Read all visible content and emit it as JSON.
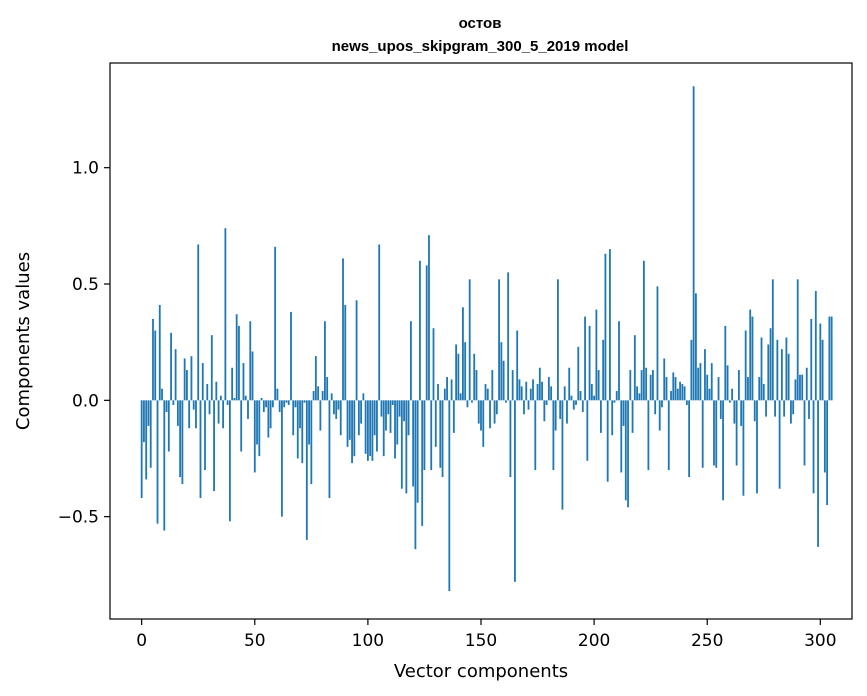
{
  "chart_data": {
    "type": "bar",
    "title_line1": "остов",
    "title_line2": "news_upos_skipgram_300_5_2019 model",
    "xlabel": "Vector components",
    "ylabel": "Components values",
    "xlim": [
      -14,
      314
    ],
    "ylim": [
      -0.94,
      1.45
    ],
    "xticks": [
      0,
      50,
      100,
      150,
      200,
      250,
      300
    ],
    "xtick_labels": [
      "0",
      "50",
      "100",
      "150",
      "200",
      "250",
      "300"
    ],
    "yticks": [
      -0.5,
      0.0,
      0.5,
      1.0
    ],
    "ytick_labels": [
      "−0.5",
      "0.0",
      "0.5",
      "1.0"
    ],
    "bar_color": "#1f77b4",
    "values": [
      -0.42,
      -0.18,
      -0.34,
      -0.11,
      -0.29,
      0.35,
      0.3,
      -0.53,
      0.41,
      0.05,
      -0.56,
      -0.05,
      -0.22,
      0.29,
      -0.02,
      0.22,
      -0.11,
      -0.33,
      -0.36,
      0.18,
      0.13,
      -0.12,
      0.19,
      -0.04,
      -0.12,
      0.67,
      -0.42,
      0.16,
      -0.3,
      0.07,
      -0.06,
      0.28,
      -0.39,
      0.08,
      -0.1,
      0.02,
      -0.12,
      0.74,
      -0.02,
      -0.52,
      0.14,
      0.01,
      0.37,
      0.32,
      -0.22,
      0.16,
      0.02,
      -0.08,
      0.34,
      0.21,
      -0.31,
      -0.19,
      -0.24,
      0.01,
      -0.05,
      -0.03,
      -0.16,
      -0.12,
      -0.03,
      0.66,
      0.05,
      -0.05,
      -0.5,
      -0.03,
      -0.01,
      -0.02,
      0.38,
      -0.15,
      -0.03,
      -0.25,
      -0.12,
      -0.27,
      -0.01,
      -0.6,
      -0.19,
      -0.36,
      0.04,
      0.19,
      0.06,
      -0.13,
      0.04,
      0.34,
      0.1,
      -0.42,
      0.03,
      -0.06,
      -0.08,
      -0.04,
      -0.15,
      0.61,
      0.41,
      -0.2,
      -0.17,
      -0.27,
      -0.24,
      0.43,
      -0.15,
      -0.1,
      0.03,
      -0.23,
      -0.26,
      -0.24,
      -0.26,
      -0.15,
      -0.22,
      0.67,
      -0.07,
      -0.24,
      -0.13,
      -0.06,
      -0.14,
      -0.02,
      -0.25,
      -0.19,
      -0.07,
      -0.38,
      -0.09,
      -0.4,
      -0.15,
      0.34,
      -0.37,
      -0.64,
      -0.44,
      0.6,
      -0.54,
      -0.3,
      0.58,
      0.71,
      -0.3,
      0.31,
      -0.2,
      0.07,
      -0.29,
      -0.33,
      0.05,
      0.1,
      -0.82,
      0.09,
      -0.14,
      0.24,
      0.2,
      0.03,
      0.4,
      0.25,
      -0.03,
      0.52,
      -0.01,
      0.2,
      0.13,
      -0.1,
      -0.13,
      -0.2,
      0.07,
      0.05,
      -0.12,
      0.13,
      -0.1,
      -0.06,
      0.52,
      0.25,
      0.17,
      -0.01,
      0.55,
      -0.33,
      0.13,
      -0.78,
      0.3,
      0.09,
      0.06,
      -0.06,
      0.08,
      -0.04,
      0.05,
      0.09,
      -0.3,
      0.07,
      0.14,
      0.08,
      -0.09,
      -0.02,
      0.1,
      0.06,
      -0.3,
      -0.13,
      0.52,
      -0.08,
      -0.47,
      0.06,
      -0.1,
      0.14,
      0.02,
      -0.04,
      -0.02,
      0.23,
      0.04,
      -0.05,
      0.36,
      -0.26,
      0.32,
      0.07,
      0.02,
      0.39,
      0.13,
      -0.14,
      0.26,
      0.63,
      -0.35,
      0.65,
      -0.15,
      -0.01,
      0.04,
      0.34,
      -0.31,
      -0.11,
      -0.43,
      -0.46,
      0.13,
      -0.14,
      0.28,
      0.06,
      0.03,
      0.13,
      0.6,
      0.14,
      -0.3,
      0.11,
      0.13,
      -0.06,
      0.49,
      -0.13,
      -0.03,
      0.18,
      0.1,
      -0.3,
      0.04,
      0.12,
      0.1,
      0.05,
      0.08,
      0.07,
      0.06,
      -0.02,
      -0.33,
      0.26,
      1.35,
      0.46,
      0.14,
      0.16,
      -0.29,
      0.22,
      0.11,
      0.05,
      0.16,
      -0.28,
      -0.29,
      0.1,
      -0.08,
      -0.43,
      0.32,
      0.15,
      -0.01,
      0.05,
      -0.1,
      -0.28,
      0.13,
      -0.11,
      -0.41,
      0.3,
      0.1,
      0.39,
      0.36,
      -0.09,
      -0.4,
      0.1,
      0.27,
      0.07,
      -0.07,
      0.24,
      0.31,
      0.52,
      -0.07,
      0.26,
      -0.38,
      0.22,
      -0.07,
      0.27,
      0.2,
      -0.1,
      -0.06,
      0.09,
      0.52,
      0.11,
      0.11,
      -0.28,
      0.14,
      -0.08,
      0.35,
      -0.4,
      0.47,
      -0.63,
      0.33,
      0.26,
      -0.31,
      -0.45,
      0.36,
      0.36
    ]
  }
}
